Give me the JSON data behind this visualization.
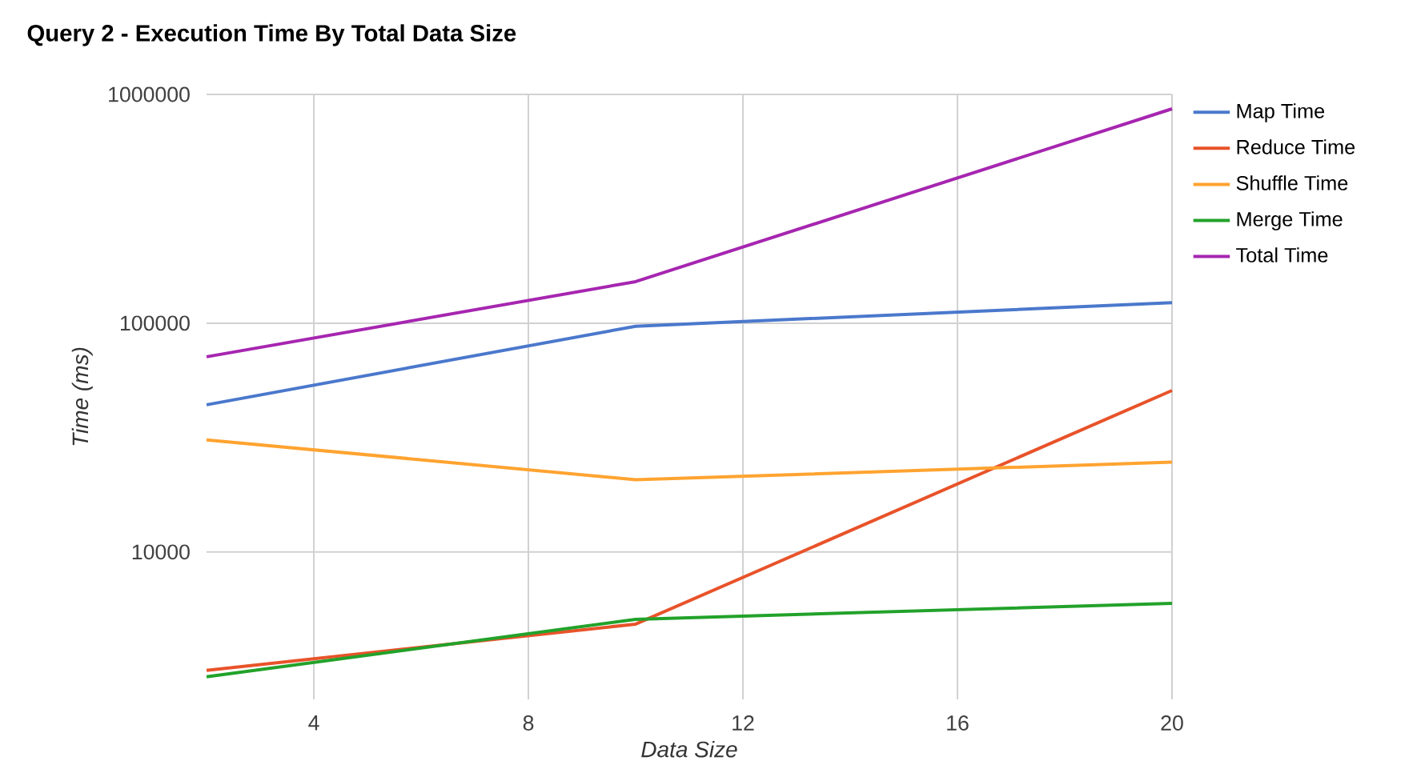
{
  "chart_data": {
    "type": "line",
    "title": "Query 2 - Execution Time By Total Data Size",
    "xlabel": "Data Size",
    "ylabel": "Time (ms)",
    "x": [
      2,
      10,
      20
    ],
    "series": [
      {
        "name": "Map Time",
        "color": "#4a78cc",
        "values": [
          44000,
          97000,
          123000
        ]
      },
      {
        "name": "Reduce Time",
        "color": "#e8532a",
        "values": [
          3040,
          4840,
          50800
        ]
      },
      {
        "name": "Shuffle Time",
        "color": "#ffa330",
        "values": [
          30900,
          20700,
          24700
        ]
      },
      {
        "name": "Merge Time",
        "color": "#22a22a",
        "values": [
          2850,
          5080,
          5970
        ]
      },
      {
        "name": "Total Time",
        "color": "#a626b0",
        "values": [
          71300,
          152000,
          865000
        ]
      }
    ],
    "xlim": [
      2,
      20
    ],
    "xticks": [
      4,
      8,
      12,
      16,
      20
    ],
    "ylim": [
      2270,
      1000000
    ],
    "yticks": [
      10000,
      100000,
      1000000
    ],
    "log": "y",
    "grid": true,
    "legend": "right"
  }
}
